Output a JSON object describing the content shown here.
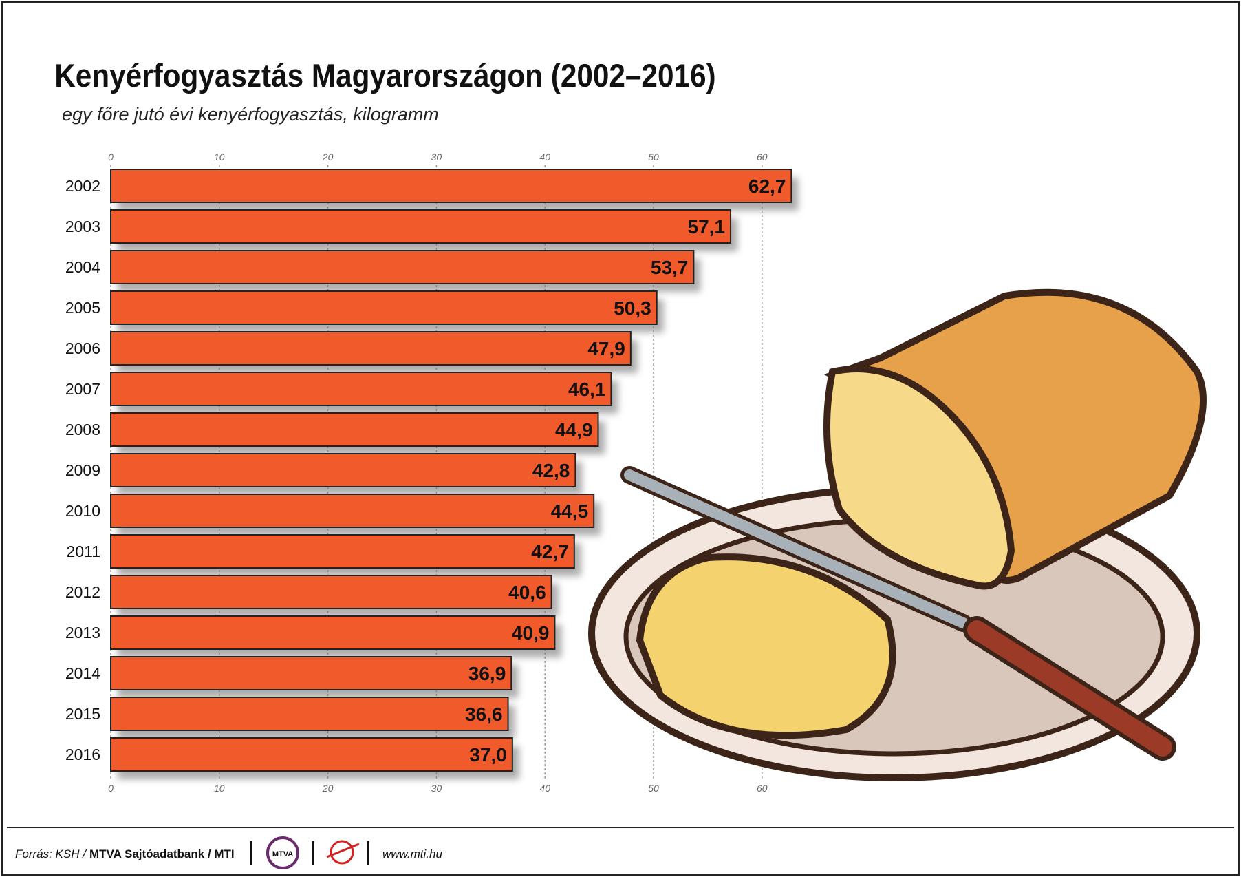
{
  "chart_data": {
    "type": "bar",
    "orientation": "horizontal",
    "title": "Kenyérfogyasztás Magyarországon (2002–2016)",
    "subtitle": "egy főre jutó évi kenyérfogyasztás, kilogramm",
    "categories": [
      "2002",
      "2003",
      "2004",
      "2005",
      "2006",
      "2007",
      "2008",
      "2009",
      "2010",
      "2011",
      "2012",
      "2013",
      "2014",
      "2015",
      "2016"
    ],
    "values": [
      62.7,
      57.1,
      53.7,
      50.3,
      47.9,
      46.1,
      44.9,
      42.8,
      44.5,
      42.7,
      40.6,
      40.9,
      36.9,
      36.6,
      37.0
    ],
    "value_labels": [
      "62,7",
      "57,1",
      "53,7",
      "50,3",
      "47,9",
      "46,1",
      "44,9",
      "42,8",
      "44,5",
      "42,7",
      "40,6",
      "40,9",
      "36,9",
      "36,6",
      "37,0"
    ],
    "color": "#f15a2b",
    "xlim": [
      0,
      65
    ],
    "xticks": [
      0,
      10,
      20,
      30,
      40,
      50,
      60
    ],
    "grid": true
  },
  "footer": {
    "source": "Forrás: KSH /",
    "bank": "MTVA Sajtóadatbank / MTI",
    "logo": "MTVA",
    "url": "www.mti.hu"
  }
}
